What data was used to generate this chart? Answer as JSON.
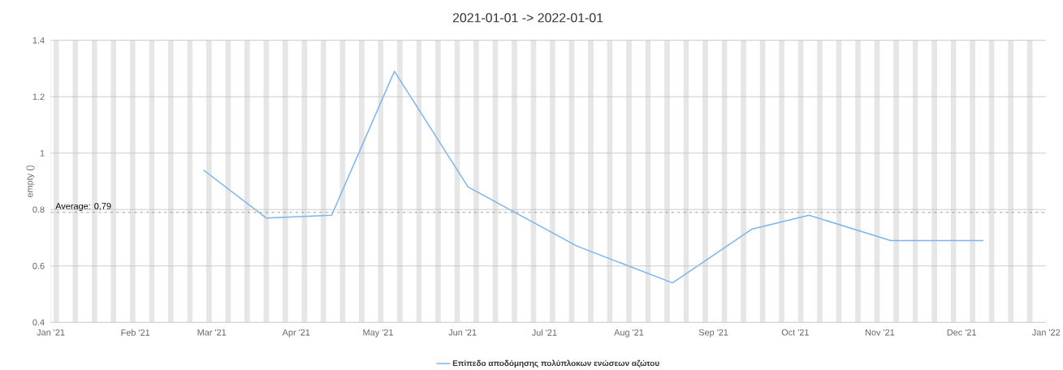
{
  "chart_data": {
    "type": "line",
    "title": "2021-01-01 -> 2022-01-01",
    "ylabel": "empty ()",
    "x": [
      "2021-02-26",
      "2021-03-21",
      "2021-04-14",
      "2021-05-07",
      "2021-06-03",
      "2021-07-13",
      "2021-08-17",
      "2021-09-15",
      "2021-10-06",
      "2021-11-05",
      "2021-12-09"
    ],
    "series": [
      {
        "name": "Επίπεδο αποδόμησης πολύπλοκων ενώσεων αζώτου",
        "color": "#7cb5ec",
        "values": [
          0.94,
          0.77,
          0.78,
          1.29,
          0.88,
          0.67,
          0.54,
          0.73,
          0.78,
          0.69,
          0.69
        ]
      }
    ],
    "xlim": [
      "2021-01-01",
      "2022-01-01"
    ],
    "xticks": [
      {
        "value": "2021-01-01",
        "label": "Jan '21"
      },
      {
        "value": "2021-02-01",
        "label": "Feb '21"
      },
      {
        "value": "2021-03-01",
        "label": "Mar '21"
      },
      {
        "value": "2021-04-01",
        "label": "Apr '21"
      },
      {
        "value": "2021-05-01",
        "label": "May '21"
      },
      {
        "value": "2021-06-01",
        "label": "Jun '21"
      },
      {
        "value": "2021-07-01",
        "label": "Jul '21"
      },
      {
        "value": "2021-08-01",
        "label": "Aug '21"
      },
      {
        "value": "2021-09-01",
        "label": "Sep '21"
      },
      {
        "value": "2021-10-01",
        "label": "Oct '21"
      },
      {
        "value": "2021-11-01",
        "label": "Nov '21"
      },
      {
        "value": "2021-12-01",
        "label": "Dec '21"
      },
      {
        "value": "2022-01-01",
        "label": "Jan '22"
      }
    ],
    "ylim": [
      0.4,
      1.4
    ],
    "yticks": [
      0.4,
      0.6,
      0.8,
      1,
      1.2,
      1.4
    ],
    "grid": "y",
    "legend": "bottom",
    "marker": "none",
    "line_style": "solid",
    "ref_lines": [
      {
        "axis": "y",
        "value": 0.79,
        "label": "Average: 0,79",
        "color": "#808080",
        "line_style": "dashdot"
      }
    ],
    "bands": [
      {
        "axis": "x",
        "from": "2021-01-02",
        "to": "2021-01-04",
        "color": "#e6e6e6"
      },
      {
        "axis": "x",
        "from": "2021-01-09",
        "to": "2021-01-11",
        "color": "#e6e6e6"
      },
      {
        "axis": "x",
        "from": "2021-01-16",
        "to": "2021-01-18",
        "color": "#e6e6e6"
      },
      {
        "axis": "x",
        "from": "2021-01-23",
        "to": "2021-01-25",
        "color": "#e6e6e6"
      },
      {
        "axis": "x",
        "from": "2021-01-30",
        "to": "2021-02-01",
        "color": "#e6e6e6"
      },
      {
        "axis": "x",
        "from": "2021-02-06",
        "to": "2021-02-08",
        "color": "#e6e6e6"
      },
      {
        "axis": "x",
        "from": "2021-02-13",
        "to": "2021-02-15",
        "color": "#e6e6e6"
      },
      {
        "axis": "x",
        "from": "2021-02-20",
        "to": "2021-02-22",
        "color": "#e6e6e6"
      },
      {
        "axis": "x",
        "from": "2021-02-27",
        "to": "2021-03-01",
        "color": "#e6e6e6"
      },
      {
        "axis": "x",
        "from": "2021-03-06",
        "to": "2021-03-08",
        "color": "#e6e6e6"
      },
      {
        "axis": "x",
        "from": "2021-03-13",
        "to": "2021-03-15",
        "color": "#e6e6e6"
      },
      {
        "axis": "x",
        "from": "2021-03-20",
        "to": "2021-03-22",
        "color": "#e6e6e6"
      },
      {
        "axis": "x",
        "from": "2021-03-27",
        "to": "2021-03-29",
        "color": "#e6e6e6"
      },
      {
        "axis": "x",
        "from": "2021-04-03",
        "to": "2021-04-05",
        "color": "#e6e6e6"
      },
      {
        "axis": "x",
        "from": "2021-04-10",
        "to": "2021-04-12",
        "color": "#e6e6e6"
      },
      {
        "axis": "x",
        "from": "2021-04-17",
        "to": "2021-04-19",
        "color": "#e6e6e6"
      },
      {
        "axis": "x",
        "from": "2021-04-24",
        "to": "2021-04-26",
        "color": "#e6e6e6"
      },
      {
        "axis": "x",
        "from": "2021-05-01",
        "to": "2021-05-03",
        "color": "#e6e6e6"
      },
      {
        "axis": "x",
        "from": "2021-05-08",
        "to": "2021-05-10",
        "color": "#e6e6e6"
      },
      {
        "axis": "x",
        "from": "2021-05-15",
        "to": "2021-05-17",
        "color": "#e6e6e6"
      },
      {
        "axis": "x",
        "from": "2021-05-22",
        "to": "2021-05-24",
        "color": "#e6e6e6"
      },
      {
        "axis": "x",
        "from": "2021-05-29",
        "to": "2021-05-31",
        "color": "#e6e6e6"
      },
      {
        "axis": "x",
        "from": "2021-06-05",
        "to": "2021-06-07",
        "color": "#e6e6e6"
      },
      {
        "axis": "x",
        "from": "2021-06-12",
        "to": "2021-06-14",
        "color": "#e6e6e6"
      },
      {
        "axis": "x",
        "from": "2021-06-19",
        "to": "2021-06-21",
        "color": "#e6e6e6"
      },
      {
        "axis": "x",
        "from": "2021-06-26",
        "to": "2021-06-28",
        "color": "#e6e6e6"
      },
      {
        "axis": "x",
        "from": "2021-07-03",
        "to": "2021-07-05",
        "color": "#e6e6e6"
      },
      {
        "axis": "x",
        "from": "2021-07-10",
        "to": "2021-07-12",
        "color": "#e6e6e6"
      },
      {
        "axis": "x",
        "from": "2021-07-17",
        "to": "2021-07-19",
        "color": "#e6e6e6"
      },
      {
        "axis": "x",
        "from": "2021-07-24",
        "to": "2021-07-26",
        "color": "#e6e6e6"
      },
      {
        "axis": "x",
        "from": "2021-07-31",
        "to": "2021-08-02",
        "color": "#e6e6e6"
      },
      {
        "axis": "x",
        "from": "2021-08-07",
        "to": "2021-08-09",
        "color": "#e6e6e6"
      },
      {
        "axis": "x",
        "from": "2021-08-14",
        "to": "2021-08-16",
        "color": "#e6e6e6"
      },
      {
        "axis": "x",
        "from": "2021-08-21",
        "to": "2021-08-23",
        "color": "#e6e6e6"
      },
      {
        "axis": "x",
        "from": "2021-08-28",
        "to": "2021-08-30",
        "color": "#e6e6e6"
      },
      {
        "axis": "x",
        "from": "2021-09-04",
        "to": "2021-09-06",
        "color": "#e6e6e6"
      },
      {
        "axis": "x",
        "from": "2021-09-11",
        "to": "2021-09-13",
        "color": "#e6e6e6"
      },
      {
        "axis": "x",
        "from": "2021-09-18",
        "to": "2021-09-20",
        "color": "#e6e6e6"
      },
      {
        "axis": "x",
        "from": "2021-09-25",
        "to": "2021-09-27",
        "color": "#e6e6e6"
      },
      {
        "axis": "x",
        "from": "2021-10-02",
        "to": "2021-10-04",
        "color": "#e6e6e6"
      },
      {
        "axis": "x",
        "from": "2021-10-09",
        "to": "2021-10-11",
        "color": "#e6e6e6"
      },
      {
        "axis": "x",
        "from": "2021-10-16",
        "to": "2021-10-18",
        "color": "#e6e6e6"
      },
      {
        "axis": "x",
        "from": "2021-10-23",
        "to": "2021-10-25",
        "color": "#e6e6e6"
      },
      {
        "axis": "x",
        "from": "2021-10-30",
        "to": "2021-11-01",
        "color": "#e6e6e6"
      },
      {
        "axis": "x",
        "from": "2021-11-06",
        "to": "2021-11-08",
        "color": "#e6e6e6"
      },
      {
        "axis": "x",
        "from": "2021-11-13",
        "to": "2021-11-15",
        "color": "#e6e6e6"
      },
      {
        "axis": "x",
        "from": "2021-11-20",
        "to": "2021-11-22",
        "color": "#e6e6e6"
      },
      {
        "axis": "x",
        "from": "2021-11-27",
        "to": "2021-11-29",
        "color": "#e6e6e6"
      },
      {
        "axis": "x",
        "from": "2021-12-04",
        "to": "2021-12-06",
        "color": "#e6e6e6"
      },
      {
        "axis": "x",
        "from": "2021-12-11",
        "to": "2021-12-13",
        "color": "#e6e6e6"
      },
      {
        "axis": "x",
        "from": "2021-12-18",
        "to": "2021-12-20",
        "color": "#e6e6e6"
      },
      {
        "axis": "x",
        "from": "2021-12-25",
        "to": "2021-12-27",
        "color": "#e6e6e6"
      }
    ]
  }
}
